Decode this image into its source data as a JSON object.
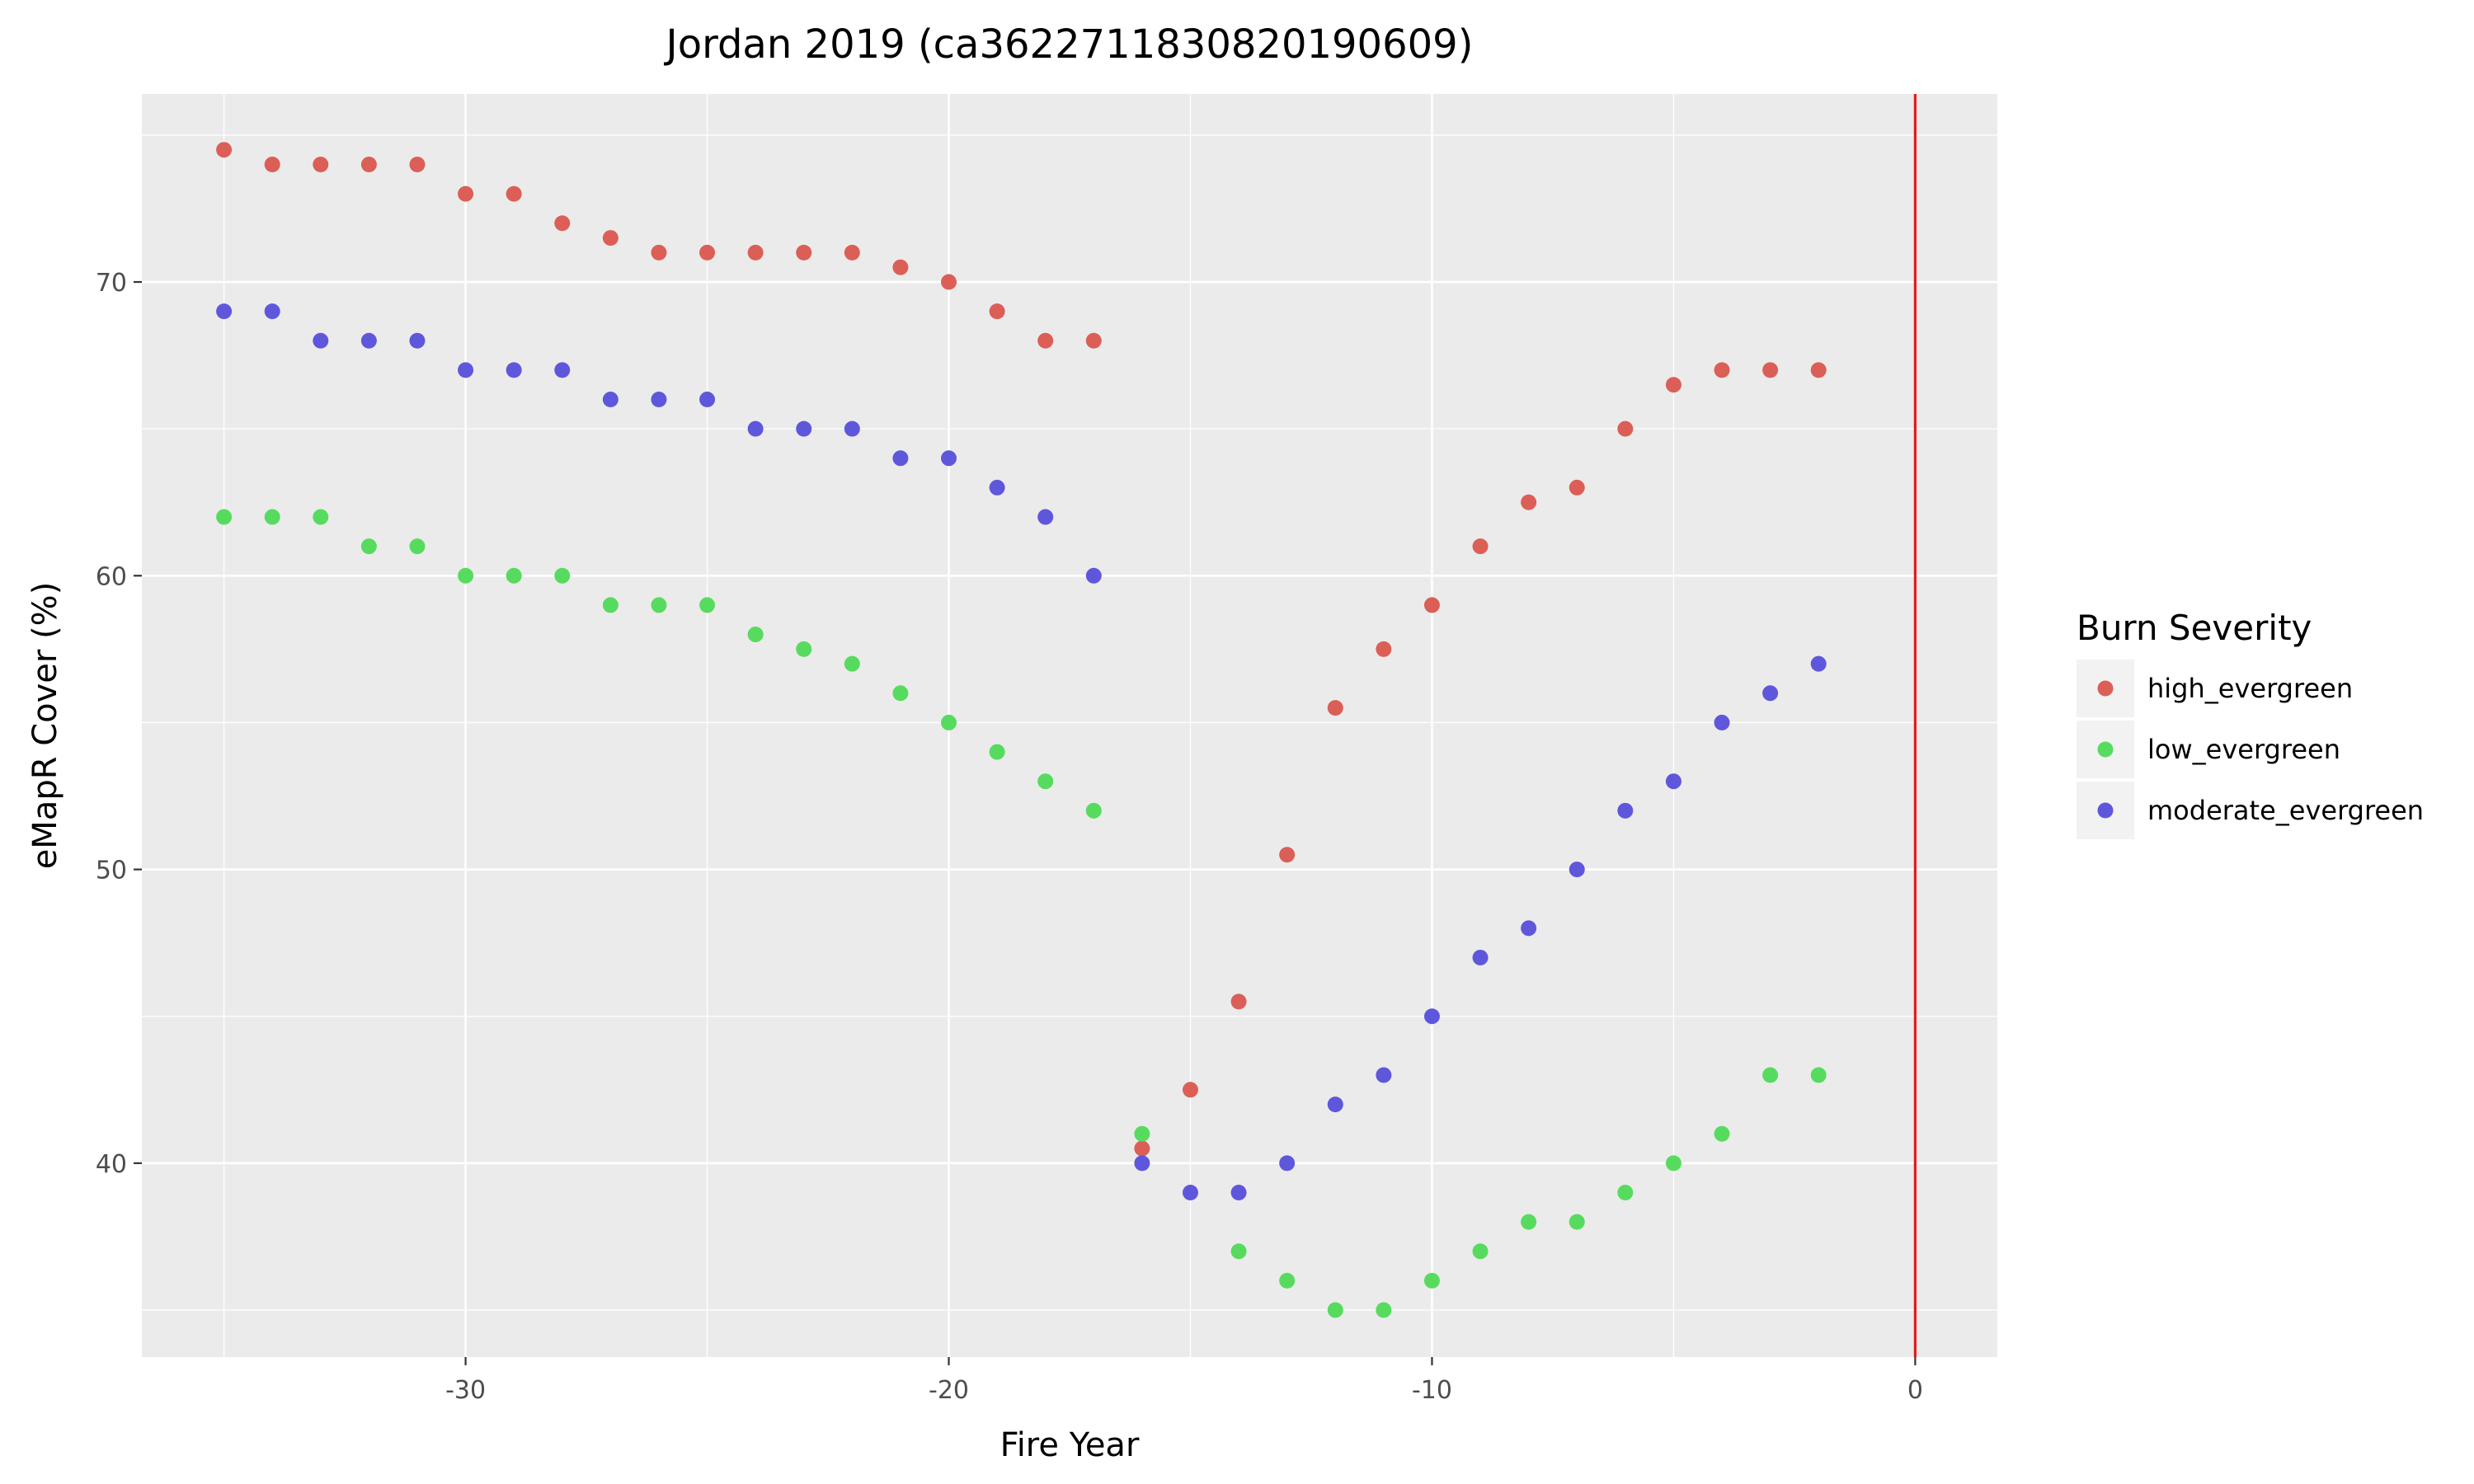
{
  "chart_data": {
    "type": "scatter",
    "title": "Jordan 2019 (ca3622711830820190609)",
    "xlabel": "Fire Year",
    "ylabel": "eMapR Cover (%)",
    "xlim": [
      -36.7,
      1.7
    ],
    "ylim": [
      33.4,
      76.4
    ],
    "x_ticks": [
      -30,
      -20,
      -10,
      0
    ],
    "y_ticks": [
      40,
      50,
      60,
      70
    ],
    "grid": true,
    "legend": {
      "title": "Burn Severity",
      "position": "right"
    },
    "vline": {
      "x": 0,
      "color": "#e31a1c"
    },
    "series": [
      {
        "name": "high_evergreen",
        "color": "#db5f57",
        "points": [
          [
            -35,
            74.5
          ],
          [
            -34,
            74
          ],
          [
            -33,
            74
          ],
          [
            -32,
            74
          ],
          [
            -31,
            74
          ],
          [
            -30,
            73
          ],
          [
            -29,
            73
          ],
          [
            -28,
            72
          ],
          [
            -27,
            71.5
          ],
          [
            -26,
            71
          ],
          [
            -25,
            71
          ],
          [
            -24,
            71
          ],
          [
            -23,
            71
          ],
          [
            -22,
            71
          ],
          [
            -21,
            70.5
          ],
          [
            -20,
            70
          ],
          [
            -19,
            69
          ],
          [
            -18,
            68
          ],
          [
            -17,
            68
          ],
          [
            -16,
            40.5
          ],
          [
            -15,
            42.5
          ],
          [
            -14,
            45.5
          ],
          [
            -13,
            50.5
          ],
          [
            -12,
            55.5
          ],
          [
            -11,
            57.5
          ],
          [
            -10,
            59
          ],
          [
            -9,
            61
          ],
          [
            -8,
            62.5
          ],
          [
            -7,
            63
          ],
          [
            -6,
            65
          ],
          [
            -5,
            66.5
          ],
          [
            -4,
            67
          ],
          [
            -3,
            67
          ],
          [
            -2,
            67
          ]
        ]
      },
      {
        "name": "low_evergreen",
        "color": "#57db5f",
        "points": [
          [
            -35,
            62
          ],
          [
            -34,
            62
          ],
          [
            -33,
            62
          ],
          [
            -32,
            61
          ],
          [
            -31,
            61
          ],
          [
            -30,
            60
          ],
          [
            -29,
            60
          ],
          [
            -28,
            60
          ],
          [
            -27,
            59
          ],
          [
            -26,
            59
          ],
          [
            -25,
            59
          ],
          [
            -24,
            58
          ],
          [
            -23,
            57.5
          ],
          [
            -22,
            57
          ],
          [
            -21,
            56
          ],
          [
            -20,
            55
          ],
          [
            -19,
            54
          ],
          [
            -18,
            53
          ],
          [
            -17,
            52
          ],
          [
            -16,
            41
          ],
          [
            -14,
            37
          ],
          [
            -13,
            36
          ],
          [
            -12,
            35
          ],
          [
            -11,
            35
          ],
          [
            -10,
            36
          ],
          [
            -9,
            37
          ],
          [
            -8,
            38
          ],
          [
            -7,
            38
          ],
          [
            -6,
            39
          ],
          [
            -5,
            40
          ],
          [
            -4,
            41
          ],
          [
            -3,
            43
          ],
          [
            -2,
            43
          ]
        ]
      },
      {
        "name": "moderate_evergreen",
        "color": "#5f57db",
        "points": [
          [
            -35,
            69
          ],
          [
            -34,
            69
          ],
          [
            -33,
            68
          ],
          [
            -32,
            68
          ],
          [
            -31,
            68
          ],
          [
            -30,
            67
          ],
          [
            -29,
            67
          ],
          [
            -28,
            67
          ],
          [
            -27,
            66
          ],
          [
            -26,
            66
          ],
          [
            -25,
            66
          ],
          [
            -24,
            65
          ],
          [
            -23,
            65
          ],
          [
            -22,
            65
          ],
          [
            -21,
            64
          ],
          [
            -20,
            64
          ],
          [
            -19,
            63
          ],
          [
            -18,
            62
          ],
          [
            -17,
            60
          ],
          [
            -16,
            40
          ],
          [
            -15,
            39
          ],
          [
            -14,
            39
          ],
          [
            -13,
            40
          ],
          [
            -12,
            42
          ],
          [
            -11,
            43
          ],
          [
            -10,
            45
          ],
          [
            -9,
            47
          ],
          [
            -8,
            48
          ],
          [
            -7,
            50
          ],
          [
            -6,
            52
          ],
          [
            -5,
            53
          ],
          [
            -4,
            55
          ],
          [
            -3,
            56
          ],
          [
            -2,
            57
          ]
        ]
      }
    ]
  }
}
